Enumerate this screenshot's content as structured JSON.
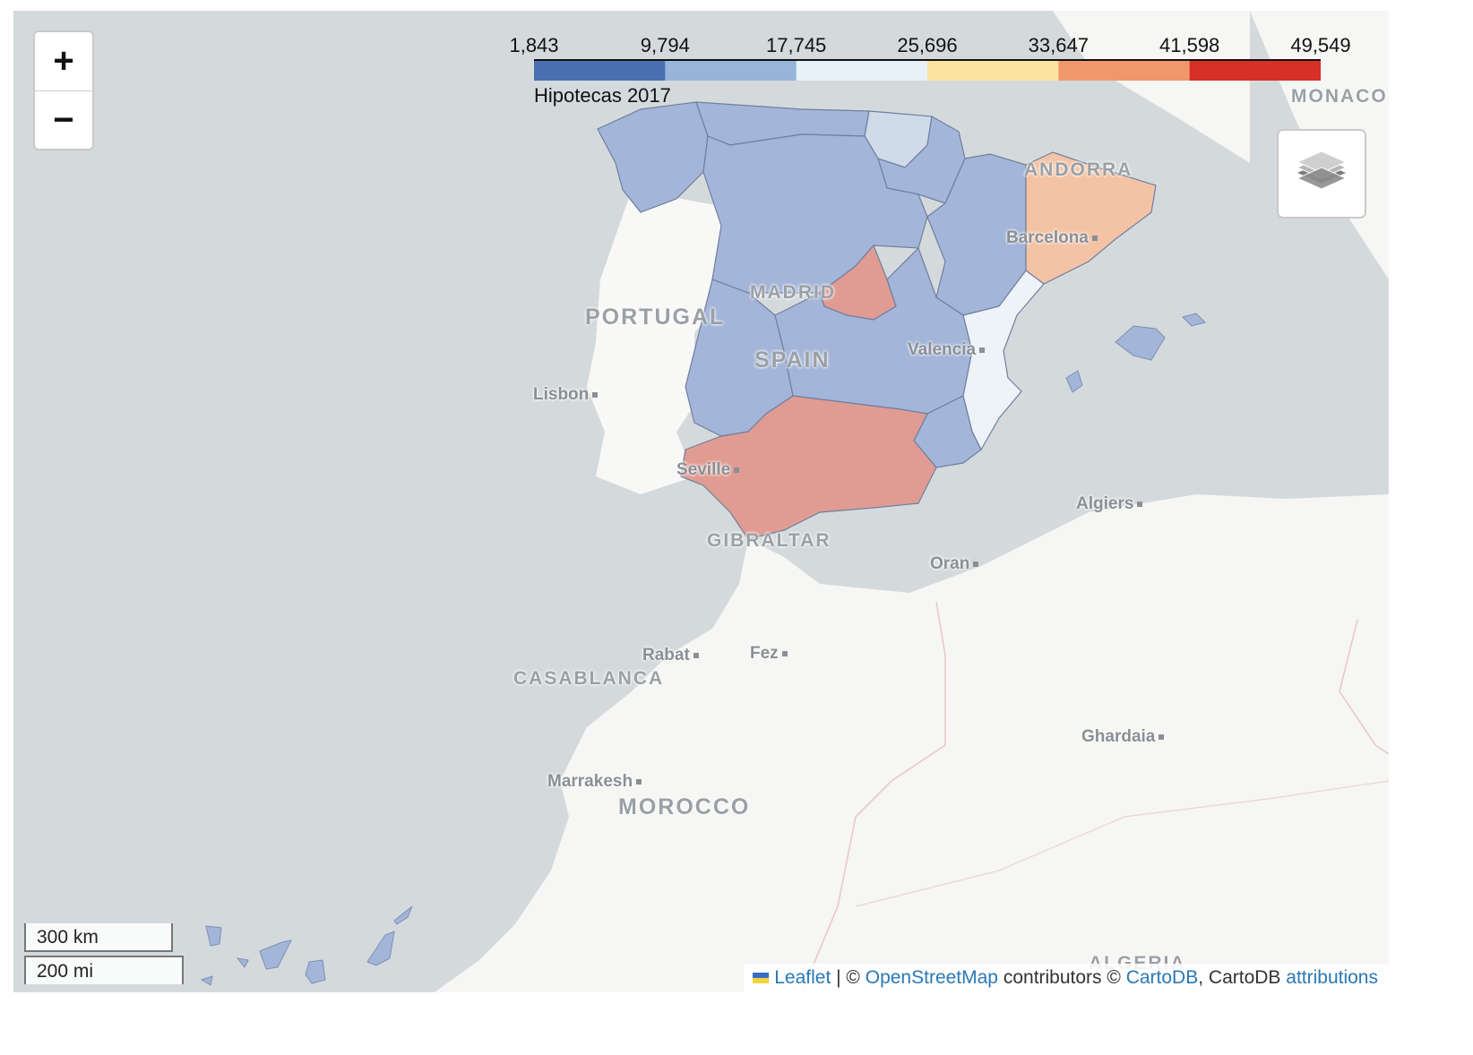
{
  "legend": {
    "title": "Hipotecas 2017",
    "ticks": [
      "1,843",
      "9,794",
      "17,745",
      "25,696",
      "33,647",
      "41,598",
      "49,549"
    ],
    "colors": [
      "#4a6fb0",
      "#98b4d9",
      "#e8f1f7",
      "#fbe3a0",
      "#f0986b",
      "#d73027"
    ]
  },
  "zoom": {
    "in_label": "+",
    "out_label": "−"
  },
  "scale": {
    "km": "300 km",
    "mi": "200 mi"
  },
  "attribution": {
    "leaflet": "Leaflet",
    "sep1": " | © ",
    "osm": "OpenStreetMap",
    "contrib": " contributors © ",
    "cartodb": "CartoDB",
    "sep2": ", CartoDB ",
    "attributions": "attributions"
  },
  "places": {
    "portugal": "PORTUGAL",
    "spain": "SPAIN",
    "madrid": "MADRID",
    "andorra": "ANDORRA",
    "monaco": "MONACO",
    "gibraltar": "GIBRALTAR",
    "morocco": "MOROCCO",
    "casablanca": "CASABLANCA",
    "algeria": "ALGERIA",
    "lisbon": "Lisbon",
    "barcelona": "Barcelona",
    "valencia": "Valencia",
    "seville": "Seville",
    "algiers": "Algiers",
    "oran": "Oran",
    "rabat": "Rabat",
    "fez": "Fez",
    "ghardaia": "Ghardaia",
    "marrakesh": "Marrakesh"
  },
  "region_fills": {
    "low": "#a3b5d8",
    "madrid_andalucia": "#e09c93",
    "cataluna": "#f4c3a6",
    "valencia": "#edf3f7",
    "pais_vasco": "#cfdbe8"
  },
  "ocean_color": "#d4dadc",
  "land_color": "#f6f6f4"
}
